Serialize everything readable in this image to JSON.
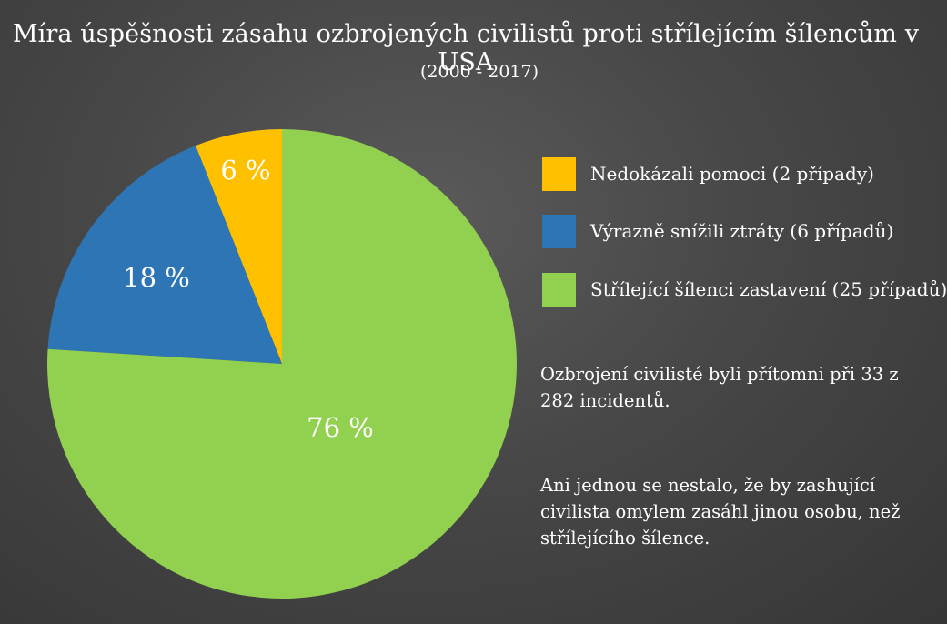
{
  "title": "Míra úspěšnosti zásahu ozbrojených civilistů proti střílejícím šílencům v USA",
  "subtitle": "(2000 - 2017)",
  "chart_data": {
    "type": "pie",
    "title": "Míra úspěšnosti zásahu ozbrojených civilistů proti střílejícím šílencům v USA",
    "subtitle": "(2000 - 2017)",
    "start_angle_deg": 0,
    "direction": "counterclockwise",
    "slices": [
      {
        "label": "Nedokázali pomoci (2 případy)",
        "value": 6,
        "display": "6 %",
        "color": "#ffc000"
      },
      {
        "label": "Výrazně snížili ztráty (6 případů)",
        "value": 18,
        "display": "18 %",
        "color": "#2e75b6"
      },
      {
        "label": "Střílející šílenci zastavení (25 případů)",
        "value": 76,
        "display": "76 %",
        "color": "#92d050"
      }
    ],
    "legend_position": "right"
  },
  "legend": [
    {
      "label": "Nedokázali pomoci (2 případy)",
      "color": "#ffc000"
    },
    {
      "label": "Výrazně snížili ztráty (6 případů)",
      "color": "#2e75b6"
    },
    {
      "label": "Střílející šílenci zastavení (25 případů)",
      "color": "#92d050"
    }
  ],
  "notes": {
    "presence": "Ozbrojení civilisté byli přítomni při 33 z 282 incidentů.",
    "no_mistakes": "Ani jednou se nestalo, že by zashující civilista omylem zasáhl jinou osobu, než střílejícího šílence."
  }
}
